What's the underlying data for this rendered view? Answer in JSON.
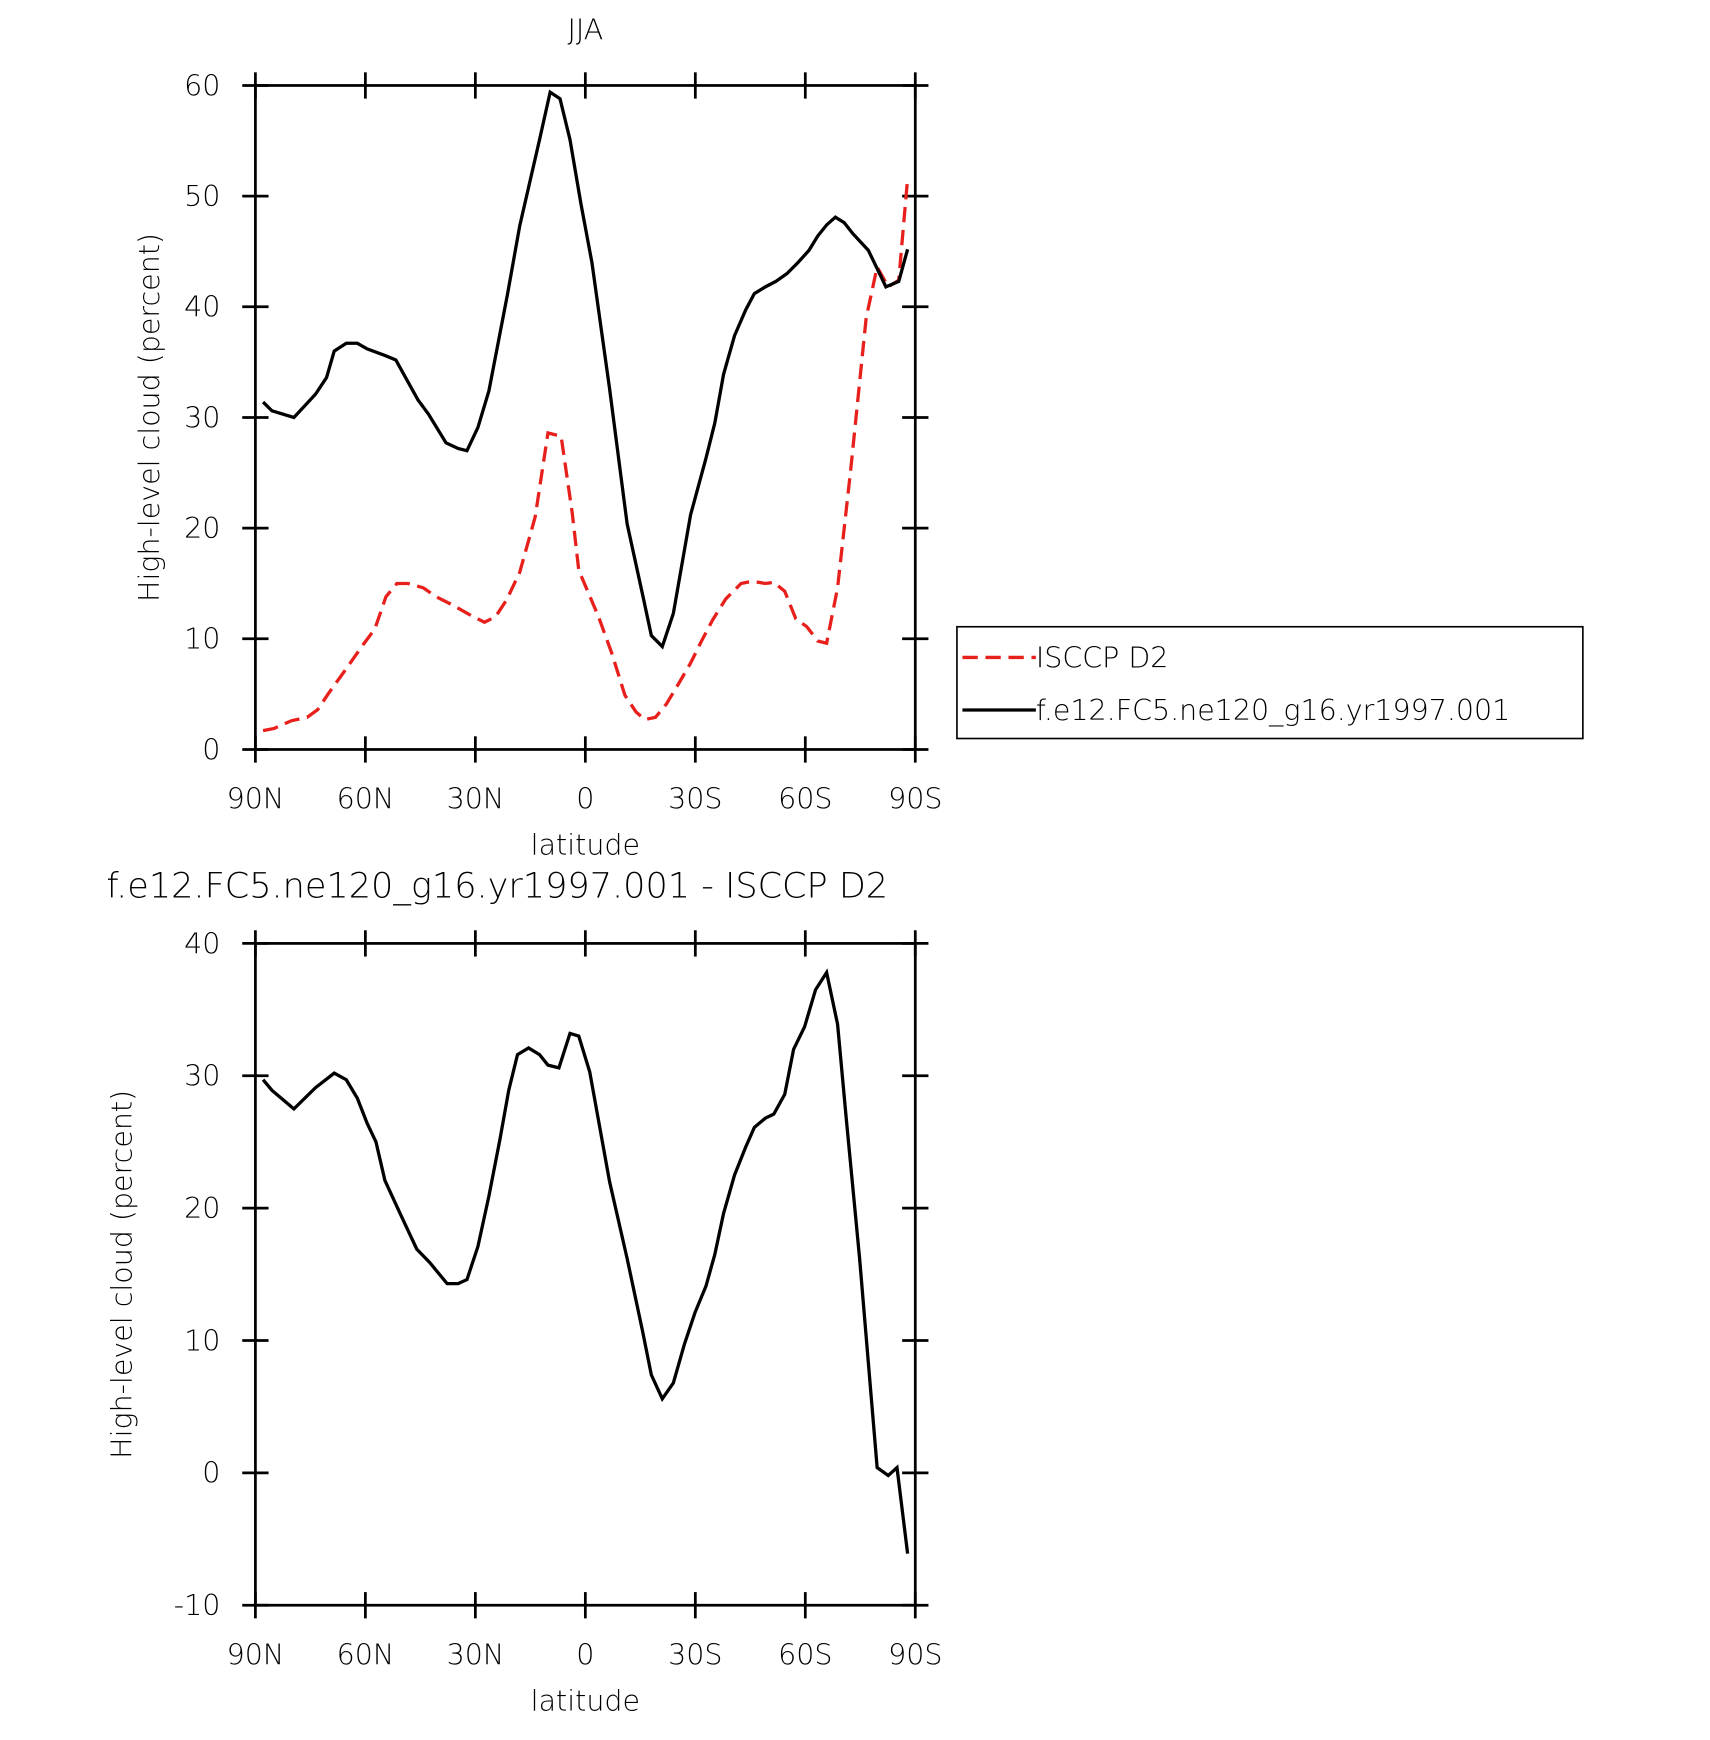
{
  "chart_data": [
    {
      "type": "line",
      "title": "JJA",
      "xlabel": "latitude",
      "ylabel": "High-level cloud (percent)",
      "xlim": [
        90,
        -90
      ],
      "xticks": [
        {
          "value": 90,
          "label": "90N"
        },
        {
          "value": 60,
          "label": "60N"
        },
        {
          "value": 30,
          "label": "30N"
        },
        0,
        {
          "value": -30,
          "label": "30S"
        },
        {
          "value": -60,
          "label": "60S"
        },
        {
          "value": -90,
          "label": "90S"
        }
      ],
      "ylim": [
        0,
        60
      ],
      "yticks": [
        0,
        10,
        20,
        30,
        40,
        50,
        60
      ],
      "series": [
        {
          "name": "ISCCP D2",
          "color": "#e8201c",
          "dash": true,
          "x": [
            87.9,
            84.9,
            80.1,
            75.9,
            73.0,
            70.0,
            65.2,
            61.0,
            57.4,
            54.4,
            51.4,
            48.4,
            44.2,
            40.7,
            35.9,
            31.7,
            27.5,
            24.5,
            21.5,
            17.9,
            13.7,
            10.2,
            6.6,
            3.6,
            1.8,
            -3.6,
            -7.2,
            -10.8,
            -13.8,
            -16.2,
            -19.1,
            -22.1,
            -25.7,
            -28.7,
            -31.7,
            -34.7,
            -38.3,
            -42.5,
            -45.5,
            -49.1,
            -51.4,
            -54.4,
            -57.4,
            -60.4,
            -63.4,
            -65.8,
            -68.8,
            -72.4,
            -76.6,
            -79.6,
            -82.6,
            -85.5,
            -87.9
          ],
          "values": [
            1.7,
            1.9,
            2.6,
            2.9,
            3.6,
            5.1,
            7.3,
            9.3,
            10.9,
            13.8,
            15.0,
            15.0,
            14.6,
            13.8,
            13.0,
            12.2,
            11.5,
            12.0,
            13.5,
            16.0,
            21.0,
            28.6,
            28.3,
            21.4,
            16.2,
            12.0,
            8.7,
            4.9,
            3.4,
            2.7,
            2.9,
            4.1,
            6.1,
            7.8,
            9.8,
            11.7,
            13.6,
            15.0,
            15.2,
            15.0,
            15.1,
            14.3,
            11.8,
            11.1,
            9.8,
            9.6,
            14.6,
            25.3,
            39.0,
            43.6,
            41.8,
            42.4,
            51.6
          ]
        },
        {
          "name": "f.e12.FC5.ne120_g16.yr1997.001",
          "color": "#000000",
          "dash": false,
          "x": [
            87.9,
            85.5,
            79.5,
            73.6,
            70.6,
            68.5,
            65.2,
            62.2,
            59.5,
            54.7,
            51.7,
            45.7,
            42.8,
            38.0,
            34.7,
            32.3,
            29.3,
            26.3,
            21.2,
            17.9,
            12.5,
            9.6,
            6.9,
            4.2,
            1.2,
            -1.8,
            -6.6,
            -11.4,
            -15.6,
            -18.0,
            -21.0,
            -24.0,
            -28.7,
            -32.9,
            -35.3,
            -37.7,
            -40.7,
            -43.7,
            -46.1,
            -49.1,
            -52.0,
            -55.0,
            -58.0,
            -61.0,
            -63.4,
            -65.8,
            -68.2,
            -70.6,
            -73.0,
            -77.2,
            -82.0,
            -85.5,
            -87.9
          ],
          "values": [
            31.4,
            30.6,
            30.0,
            32.1,
            33.6,
            36.0,
            36.7,
            36.7,
            36.2,
            35.6,
            35.2,
            31.6,
            30.3,
            27.7,
            27.2,
            27.0,
            29.1,
            32.4,
            41.2,
            47.3,
            55.1,
            59.4,
            58.8,
            55.1,
            49.3,
            44.0,
            32.6,
            20.4,
            14.0,
            10.3,
            9.3,
            12.3,
            21.2,
            26.3,
            29.5,
            33.9,
            37.4,
            39.7,
            41.2,
            41.8,
            42.3,
            43.0,
            44.0,
            45.1,
            46.4,
            47.4,
            48.1,
            47.6,
            46.6,
            45.1,
            41.8,
            42.3,
            45.2
          ]
        }
      ]
    },
    {
      "type": "line",
      "title": "f.e12.FC5.ne120_g16.yr1997.001 - ISCCP D2",
      "xlabel": "latitude",
      "ylabel": "High-level cloud (percent)",
      "xlim": [
        90,
        -90
      ],
      "xticks": [
        {
          "value": 90,
          "label": "90N"
        },
        {
          "value": 60,
          "label": "60N"
        },
        {
          "value": 30,
          "label": "30N"
        },
        0,
        {
          "value": -30,
          "label": "30S"
        },
        {
          "value": -60,
          "label": "60S"
        },
        {
          "value": -90,
          "label": "90S"
        }
      ],
      "ylim": [
        -10,
        40
      ],
      "yticks": [
        -10,
        0,
        10,
        20,
        30,
        40
      ],
      "series": [
        {
          "color": "#000000",
          "dash": false,
          "x": [
            87.9,
            85.5,
            79.5,
            73.6,
            68.5,
            65.2,
            62.2,
            59.5,
            57.1,
            54.7,
            50.2,
            46.0,
            42.5,
            37.7,
            34.7,
            32.3,
            29.3,
            26.3,
            23.3,
            20.9,
            18.5,
            15.5,
            12.5,
            10.2,
            7.2,
            4.2,
            1.8,
            -1.2,
            -6.6,
            -11.4,
            -15.6,
            -18.0,
            -21.0,
            -24.0,
            -27.0,
            -29.9,
            -32.9,
            -35.3,
            -37.7,
            -40.7,
            -43.7,
            -46.1,
            -49.1,
            -51.4,
            -54.4,
            -56.8,
            -59.8,
            -62.8,
            -65.8,
            -68.8,
            -71.2,
            -74.8,
            -79.6,
            -82.6,
            -85.0,
            -87.9
          ],
          "values": [
            29.7,
            28.9,
            27.5,
            29.1,
            30.2,
            29.7,
            28.3,
            26.4,
            25.0,
            22.1,
            19.4,
            16.9,
            15.9,
            14.3,
            14.3,
            14.6,
            17.1,
            20.9,
            25.2,
            28.9,
            31.6,
            32.1,
            31.6,
            30.8,
            30.6,
            33.2,
            33.0,
            30.3,
            22.0,
            16.2,
            10.7,
            7.4,
            5.6,
            6.8,
            9.7,
            12.1,
            14.1,
            16.5,
            19.6,
            22.5,
            24.6,
            26.1,
            26.8,
            27.1,
            28.6,
            32.0,
            33.7,
            36.5,
            37.8,
            33.9,
            26.7,
            16.2,
            0.4,
            -0.2,
            0.4,
            -6.1
          ]
        }
      ]
    }
  ]
}
